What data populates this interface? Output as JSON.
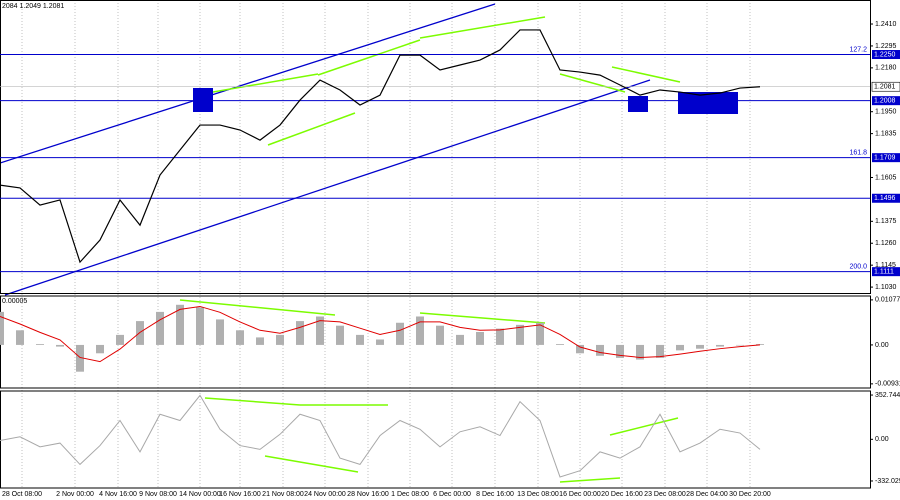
{
  "chart_data": [
    {
      "type": "line",
      "header": "2084 1.2049 1.2081",
      "color": "#000000",
      "x": [
        0,
        2,
        4,
        6,
        8,
        10,
        12,
        14,
        16,
        18,
        20,
        22,
        24,
        26,
        28,
        30,
        32,
        34,
        36,
        38,
        40,
        42,
        44,
        46,
        48,
        50,
        52,
        54,
        56,
        58,
        60,
        62,
        64,
        66,
        68,
        70,
        72,
        74,
        76
      ],
      "values": [
        1.1565,
        1.155,
        1.146,
        1.1487,
        1.1161,
        1.1277,
        1.1487,
        1.1355,
        1.1618,
        1.1749,
        1.188,
        1.188,
        1.1854,
        1.1801,
        1.188,
        1.2011,
        1.2116,
        1.2064,
        1.1985,
        1.2037,
        1.2247,
        1.2247,
        1.2169,
        1.2195,
        1.2221,
        1.2274,
        1.2379,
        1.2379,
        1.2169,
        1.2158,
        1.2142,
        1.209,
        1.2037,
        1.2064,
        1.2053,
        1.2037,
        1.2048,
        1.2074,
        1.2081
      ],
      "xlim": [
        0,
        87
      ],
      "ylim": [
        1.0999,
        1.2536
      ],
      "xticks": [
        {
          "value": 2.2,
          "label": "28 Oct 08:00"
        },
        {
          "value": 7.5,
          "label": "2 Nov 00:00"
        },
        {
          "value": 11.8,
          "label": "4 Nov 16:00"
        },
        {
          "value": 15.8,
          "label": "9 Nov 08:00"
        },
        {
          "value": 20,
          "label": "14 Nov 00:00"
        },
        {
          "value": 24,
          "label": "16 Nov 16:00"
        },
        {
          "value": 28.3,
          "label": "21 Nov 08:00"
        },
        {
          "value": 32.5,
          "label": "24 Nov 00:00"
        },
        {
          "value": 36.8,
          "label": "28 Nov 16:00"
        },
        {
          "value": 41,
          "label": "1 Dec 08:00"
        },
        {
          "value": 45.2,
          "label": "6 Dec 00:00"
        },
        {
          "value": 49.5,
          "label": "8 Dec 16:00"
        },
        {
          "value": 53.8,
          "label": "13 Dec 08:00"
        },
        {
          "value": 58,
          "label": "16 Dec 00:00"
        },
        {
          "value": 62.2,
          "label": "20 Dec 16:00"
        },
        {
          "value": 66.5,
          "label": "23 Dec 08:00"
        },
        {
          "value": 70.7,
          "label": "28 Dec 04:00"
        },
        {
          "value": 75,
          "label": "30 Dec 20:00"
        }
      ],
      "yticks": [
        {
          "value": 1.241,
          "label": "1.2410"
        },
        1.2295,
        {
          "value": 1.218,
          "label": "1.2180"
        },
        {
          "value": 1.195,
          "label": "1.1950"
        },
        1.1835,
        1.1605,
        1.1375,
        {
          "value": 1.126,
          "label": "1.1260"
        },
        1.1145,
        {
          "value": 1.103,
          "label": "1.1030"
        }
      ],
      "levels": [
        {
          "value": 1.225,
          "label": "1.2250",
          "fib": "127.2"
        },
        {
          "value": 1.2008,
          "label": "1.2008"
        },
        {
          "value": 1.1709,
          "label": "1.1709",
          "fib": "161.8"
        },
        {
          "value": 1.1496,
          "label": "1.1496"
        },
        {
          "value": 1.1111,
          "label": "1.1111",
          "fib": "200.0"
        }
      ],
      "level_color": "#0000cc",
      "last": {
        "value": 1.2081,
        "label": "1.2081"
      }
    },
    {
      "type": "macd",
      "header": "0.00005",
      "color": "#b0b0b0",
      "signal_color": "#e00000",
      "values": [
        0.0079,
        0.0035,
        0.0002,
        -0.0004,
        -0.0064,
        -0.002,
        0.0024,
        0.0057,
        0.0079,
        0.0096,
        0.009,
        0.0061,
        0.0035,
        0.0018,
        0.0024,
        0.0057,
        0.0068,
        0.0046,
        0.0024,
        0.0013,
        0.0053,
        0.0068,
        0.0046,
        0.0024,
        0.0031,
        0.0039,
        0.0048,
        0.0053,
        0.0002,
        -0.002,
        -0.0026,
        -0.0031,
        -0.0035,
        -0.0031,
        -0.0013,
        -0.0009,
        -0.0004,
        0,
        0.0002
      ],
      "signal": [
        0.0068,
        0.005,
        0.003,
        0.0012,
        -0.003,
        -0.004,
        -0.001,
        0.003,
        0.006,
        0.0085,
        0.0092,
        0.0078,
        0.0055,
        0.0035,
        0.0028,
        0.0042,
        0.0058,
        0.0055,
        0.004,
        0.0025,
        0.0035,
        0.0055,
        0.0055,
        0.0042,
        0.0035,
        0.0036,
        0.0042,
        0.0048,
        0.0025,
        -0.0005,
        -0.0018,
        -0.0025,
        -0.003,
        -0.0028,
        -0.0022,
        -0.0015,
        -0.0009,
        -0.0004,
        0
      ],
      "ylim": [
        -0.0103,
        0.0117
      ],
      "yticks": [
        0.01077,
        {
          "value": 0,
          "label": "0.00"
        },
        -0.00931
      ]
    },
    {
      "type": "line",
      "color": "#a8a8a8",
      "values": [
        -10,
        20,
        -60,
        -30,
        -200,
        -50,
        150,
        -100,
        200,
        150,
        350,
        80,
        -50,
        -80,
        40,
        200,
        150,
        -150,
        -200,
        30,
        150,
        80,
        -60,
        60,
        100,
        30,
        300,
        150,
        -300,
        -250,
        -100,
        -150,
        -60,
        200,
        -100,
        -30,
        80,
        50,
        -80
      ],
      "ylim": [
        -388,
        385
      ],
      "yticks": [
        352.7446,
        {
          "value": 0,
          "label": "0.00"
        },
        -332.0291
      ]
    }
  ]
}
